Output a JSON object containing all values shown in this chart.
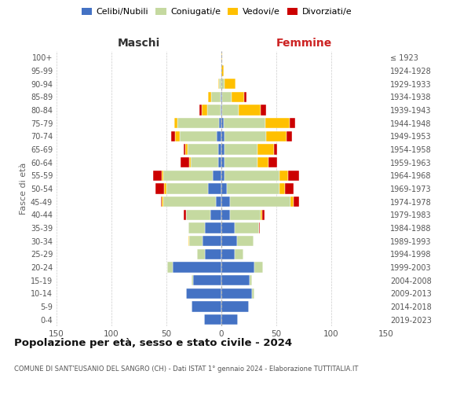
{
  "age_groups": [
    "0-4",
    "5-9",
    "10-14",
    "15-19",
    "20-24",
    "25-29",
    "30-34",
    "35-39",
    "40-44",
    "45-49",
    "50-54",
    "55-59",
    "60-64",
    "65-69",
    "70-74",
    "75-79",
    "80-84",
    "85-89",
    "90-94",
    "95-99",
    "100+"
  ],
  "birth_years": [
    "2019-2023",
    "2014-2018",
    "2009-2013",
    "2004-2008",
    "1999-2003",
    "1994-1998",
    "1989-1993",
    "1984-1988",
    "1979-1983",
    "1974-1978",
    "1969-1973",
    "1964-1968",
    "1959-1963",
    "1954-1958",
    "1949-1953",
    "1944-1948",
    "1939-1943",
    "1934-1938",
    "1929-1933",
    "1924-1928",
    "≤ 1923"
  ],
  "male": {
    "celibi": [
      16,
      27,
      32,
      26,
      44,
      15,
      17,
      15,
      10,
      5,
      12,
      8,
      3,
      3,
      4,
      2,
      1,
      1,
      0,
      0,
      0
    ],
    "coniugati": [
      0,
      0,
      0,
      1,
      5,
      7,
      12,
      15,
      22,
      48,
      38,
      45,
      25,
      28,
      34,
      38,
      12,
      8,
      2,
      0,
      0
    ],
    "vedovi": [
      0,
      0,
      0,
      0,
      0,
      0,
      1,
      0,
      0,
      1,
      2,
      1,
      1,
      2,
      4,
      3,
      5,
      3,
      1,
      0,
      0
    ],
    "divorziati": [
      0,
      0,
      0,
      0,
      0,
      0,
      0,
      0,
      2,
      1,
      8,
      8,
      8,
      1,
      4,
      0,
      2,
      0,
      0,
      0,
      0
    ]
  },
  "female": {
    "nubili": [
      15,
      25,
      28,
      26,
      30,
      12,
      14,
      12,
      8,
      8,
      5,
      3,
      3,
      3,
      3,
      2,
      1,
      1,
      0,
      0,
      0
    ],
    "coniugate": [
      0,
      0,
      2,
      2,
      8,
      8,
      15,
      22,
      28,
      55,
      48,
      50,
      30,
      30,
      38,
      38,
      15,
      8,
      3,
      0,
      0
    ],
    "vedove": [
      0,
      0,
      0,
      0,
      0,
      0,
      0,
      0,
      1,
      3,
      5,
      8,
      10,
      15,
      18,
      22,
      20,
      12,
      10,
      2,
      1
    ],
    "divorziate": [
      0,
      0,
      0,
      0,
      0,
      0,
      0,
      1,
      2,
      5,
      8,
      10,
      8,
      3,
      5,
      5,
      5,
      2,
      0,
      0,
      0
    ]
  },
  "colors": {
    "celibi": "#4472C4",
    "coniugati": "#c5d9a0",
    "vedovi": "#ffc000",
    "divorziati": "#cc0000"
  },
  "xlim": 150,
  "title": "Popolazione per età, sesso e stato civile - 2024",
  "subtitle": "COMUNE DI SANT'EUSANIO DEL SANGRO (CH) - Dati ISTAT 1° gennaio 2024 - Elaborazione TUTTITALIA.IT",
  "xlabel_left": "Maschi",
  "xlabel_right": "Femmine",
  "ylabel": "Fasce di età",
  "legend_labels": [
    "Celibi/Nubili",
    "Coniugati/e",
    "Vedovi/e",
    "Divorziati/e"
  ],
  "background_color": "#ffffff",
  "grid_color": "#cccccc"
}
